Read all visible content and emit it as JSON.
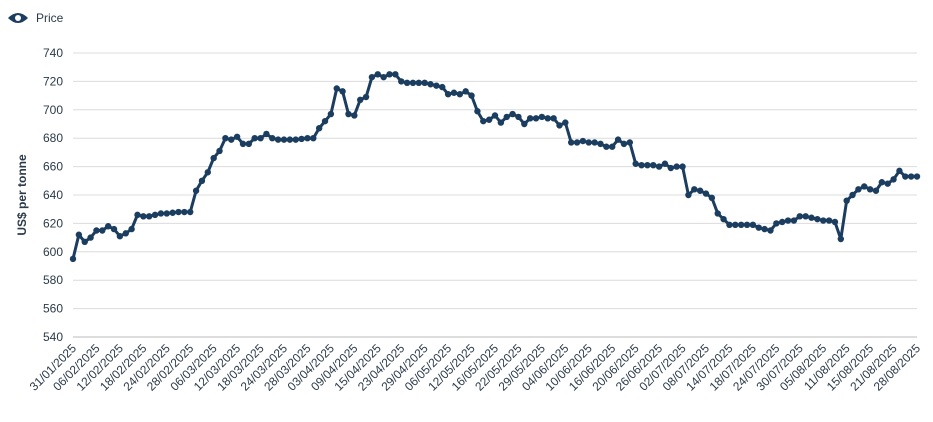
{
  "chart_data": {
    "type": "line",
    "ylabel": "US$ per tonne",
    "categories": [
      "31/01/2025",
      null,
      null,
      null,
      "06/02/2025",
      null,
      null,
      null,
      "12/02/2025",
      null,
      null,
      null,
      "18/02/2025",
      null,
      null,
      null,
      "24/02/2025",
      null,
      null,
      null,
      "28/02/2025",
      null,
      null,
      null,
      "06/03/2025",
      null,
      null,
      null,
      "12/03/2025",
      null,
      null,
      null,
      "18/03/2025",
      null,
      null,
      null,
      "24/03/2025",
      null,
      null,
      null,
      "28/03/2025",
      null,
      null,
      null,
      "03/04/2025",
      null,
      null,
      null,
      "09/04/2025",
      null,
      null,
      null,
      "15/04/2025",
      null,
      null,
      null,
      "23/04/2025",
      null,
      null,
      null,
      "29/04/2025",
      null,
      null,
      null,
      "06/05/2025",
      null,
      null,
      null,
      "12/05/2025",
      null,
      null,
      null,
      "16/05/2025",
      null,
      null,
      null,
      "22/05/2025",
      null,
      null,
      null,
      "29/05/2025",
      null,
      null,
      null,
      "04/06/2025",
      null,
      null,
      null,
      "10/06/2025",
      null,
      null,
      null,
      "16/06/2025",
      null,
      null,
      null,
      "20/06/2025",
      null,
      null,
      null,
      "26/06/2025",
      null,
      null,
      null,
      "02/07/2025",
      null,
      null,
      null,
      "08/07/2025",
      null,
      null,
      null,
      "14/07/2025",
      null,
      null,
      null,
      "18/07/2025",
      null,
      null,
      null,
      "24/07/2025",
      null,
      null,
      null,
      "30/07/2025",
      null,
      null,
      null,
      "05/08/2025",
      null,
      null,
      null,
      "11/08/2025",
      null,
      null,
      null,
      "15/08/2025",
      null,
      null,
      null,
      "21/08/2025",
      null,
      null,
      null,
      "28/08/2025"
    ],
    "series": [
      {
        "name": "Price",
        "color": "#1b3d5f",
        "values": [
          595,
          612,
          607,
          610,
          615,
          615,
          618,
          616,
          611,
          613,
          616,
          626,
          625,
          625,
          626,
          627,
          627,
          627.5,
          628,
          628,
          628,
          643,
          650,
          656,
          666,
          671,
          680,
          679,
          681,
          676,
          676,
          680,
          680,
          683,
          680,
          679,
          679,
          679,
          679,
          679.5,
          680,
          680,
          687,
          692,
          697,
          715,
          713,
          697,
          696,
          707,
          709,
          723,
          725,
          723,
          725,
          725,
          720,
          719,
          719,
          719,
          719,
          718,
          717,
          716,
          711,
          712,
          711,
          713,
          710,
          699,
          692,
          693,
          696,
          691,
          695,
          697,
          695,
          690,
          694,
          694,
          695,
          694,
          694,
          689,
          691,
          677,
          677,
          678,
          677,
          677,
          676,
          674,
          674,
          679,
          676,
          677,
          662,
          661,
          661,
          661,
          660,
          662,
          659,
          660,
          660,
          640,
          644,
          643,
          641,
          638,
          627,
          623,
          619,
          619,
          619,
          619,
          619,
          617,
          616,
          615,
          620,
          621,
          622,
          622,
          625,
          625,
          624,
          623,
          622,
          622,
          621,
          609,
          636,
          640,
          644,
          646,
          644,
          643,
          649,
          648,
          651,
          657,
          653,
          653,
          653
        ]
      }
    ],
    "ylim": [
      540,
      740
    ],
    "yticks": [
      540,
      560,
      580,
      600,
      620,
      640,
      660,
      680,
      700,
      720,
      740
    ],
    "grid": true
  }
}
